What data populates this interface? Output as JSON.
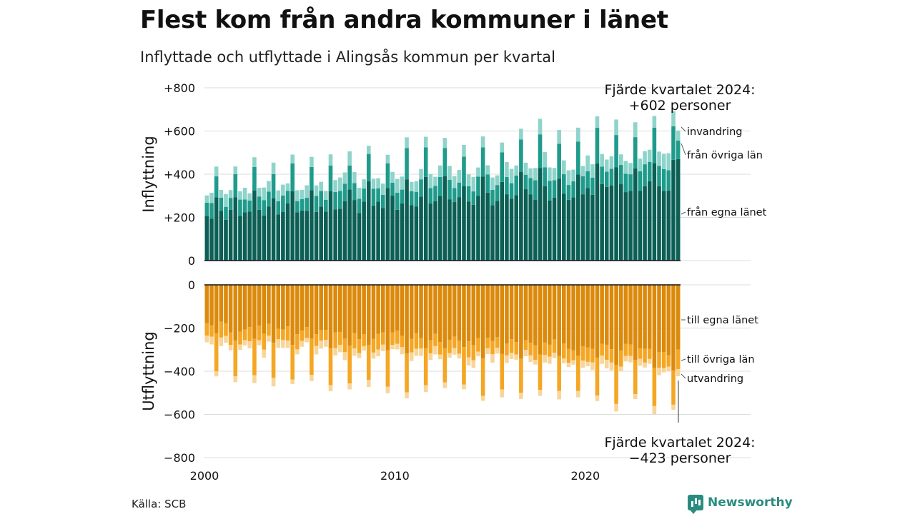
{
  "title": "Flest kom från andra kommuner i länet",
  "subtitle": "Inflyttade och utflyttade i Alingsås kommun per kvartal",
  "source": "Källa: SCB",
  "brand": "Newsworthy",
  "colors": {
    "in_own_county": "#0c5f55",
    "in_other_counties": "#1f9b8c",
    "in_immigration": "#8ed4cb",
    "out_own_county": "#dc8a0c",
    "out_other_counties": "#f5a623",
    "out_emigration": "#f8d59b",
    "grid": "#dddddd",
    "axis": "#111111"
  },
  "chart_data": {
    "type": "bar",
    "stacked": true,
    "x_ticks": [
      "2000",
      "2010",
      "2020"
    ],
    "top_panel": {
      "ylabel": "Inflyttning",
      "y_tick_labels": [
        "0",
        "+200",
        "+400",
        "+600",
        "+800"
      ],
      "series_labels": [
        "invandring",
        "från övriga län",
        "från egna länet"
      ],
      "annotation": [
        "Fjärde kvartalet 2024:",
        "+602 personer"
      ]
    },
    "bottom_panel": {
      "ylabel": "Utflyttning",
      "y_tick_labels": [
        "0",
        "−200",
        "−400",
        "−600",
        "−800"
      ],
      "series_labels": [
        "till egna länet",
        "till övriga län",
        "utvandring"
      ],
      "annotation": [
        "Fjärde kvartalet 2024:",
        "−423 personer"
      ]
    }
  }
}
